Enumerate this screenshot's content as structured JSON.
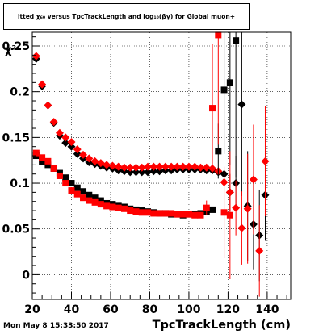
{
  "title": "itted  χ₆₀  versus TpcTrackLength and log₁₀(βγ) for Global muon+",
  "y_axis_symbol": "χ²",
  "footer_timestamp": "Mon May  8 15:33:50 2017",
  "chart_data": {
    "type": "scatter",
    "xlabel": "TpcTrackLength (cm)",
    "ylabel": "",
    "xlim": [
      20,
      152
    ],
    "ylim": [
      -0.027,
      0.265
    ],
    "x_ticks": [
      20,
      40,
      60,
      80,
      100,
      120,
      140
    ],
    "y_ticks": [
      0,
      0.05,
      0.1,
      0.15,
      0.2,
      0.25
    ],
    "y_tick_labels": [
      "0",
      "0.05",
      "0.1",
      "0.15",
      "0.2",
      "0.25"
    ],
    "grid": true,
    "series": [
      {
        "marker": "diamond",
        "color": "#000000",
        "points": [
          [
            22,
            0.236
          ],
          [
            25,
            0.206
          ],
          [
            28,
            0.185
          ],
          [
            31,
            0.166
          ],
          [
            34,
            0.152
          ],
          [
            37,
            0.144
          ],
          [
            40,
            0.14
          ],
          [
            43,
            0.132
          ],
          [
            46,
            0.127
          ],
          [
            49,
            0.123
          ],
          [
            52,
            0.121
          ],
          [
            55,
            0.119
          ],
          [
            58,
            0.117
          ],
          [
            61,
            0.116
          ],
          [
            64,
            0.114
          ],
          [
            67,
            0.113
          ],
          [
            70,
            0.112
          ],
          [
            73,
            0.112
          ],
          [
            76,
            0.112
          ],
          [
            79,
            0.112
          ],
          [
            82,
            0.113
          ],
          [
            85,
            0.113
          ],
          [
            88,
            0.114
          ],
          [
            91,
            0.114
          ],
          [
            94,
            0.115
          ],
          [
            97,
            0.115
          ],
          [
            100,
            0.115
          ],
          [
            103,
            0.115
          ],
          [
            106,
            0.115
          ],
          [
            109,
            0.114
          ],
          [
            112,
            0.114
          ],
          [
            115,
            0.112
          ],
          [
            118,
            0.11
          ],
          [
            121,
            0.09
          ],
          [
            124,
            0.1
          ],
          [
            127,
            0.186
          ],
          [
            130,
            0.075
          ],
          [
            133,
            0.055
          ],
          [
            136,
            0.043
          ],
          [
            139,
            0.087
          ]
        ],
        "errors": [
          0,
          0,
          0,
          0,
          0,
          0,
          0,
          0,
          0,
          0,
          0,
          0,
          0,
          0,
          0,
          0,
          0,
          0,
          0,
          0,
          0,
          0,
          0,
          0,
          0,
          0,
          0,
          0,
          0,
          0,
          0,
          0,
          0.004,
          0.02,
          0.03,
          0.1,
          0.06,
          0.05,
          0.05,
          0.05
        ]
      },
      {
        "marker": "diamond",
        "color": "#ff0000",
        "points": [
          [
            22,
            0.239
          ],
          [
            25,
            0.208
          ],
          [
            28,
            0.185
          ],
          [
            31,
            0.167
          ],
          [
            34,
            0.155
          ],
          [
            37,
            0.15
          ],
          [
            40,
            0.145
          ],
          [
            43,
            0.137
          ],
          [
            46,
            0.131
          ],
          [
            49,
            0.127
          ],
          [
            52,
            0.124
          ],
          [
            55,
            0.122
          ],
          [
            58,
            0.12
          ],
          [
            61,
            0.119
          ],
          [
            64,
            0.118
          ],
          [
            67,
            0.117
          ],
          [
            70,
            0.117
          ],
          [
            73,
            0.117
          ],
          [
            76,
            0.117
          ],
          [
            79,
            0.118
          ],
          [
            82,
            0.118
          ],
          [
            85,
            0.118
          ],
          [
            88,
            0.118
          ],
          [
            91,
            0.118
          ],
          [
            94,
            0.118
          ],
          [
            97,
            0.118
          ],
          [
            100,
            0.118
          ],
          [
            103,
            0.118
          ],
          [
            106,
            0.117
          ],
          [
            109,
            0.117
          ],
          [
            112,
            0.116
          ],
          [
            115,
            0.113
          ],
          [
            118,
            0.101
          ],
          [
            121,
            0.09
          ],
          [
            124,
            0.073
          ],
          [
            127,
            0.051
          ],
          [
            130,
            0.072
          ],
          [
            133,
            0.104
          ],
          [
            136,
            0.026
          ],
          [
            139,
            0.124
          ]
        ],
        "errors": [
          0,
          0,
          0,
          0,
          0,
          0,
          0,
          0,
          0,
          0,
          0,
          0,
          0,
          0,
          0,
          0,
          0,
          0,
          0,
          0,
          0,
          0,
          0,
          0,
          0,
          0,
          0,
          0,
          0,
          0,
          0,
          0,
          0.004,
          0.02,
          0.03,
          0.04,
          0.06,
          0.06,
          0.05,
          0.06
        ]
      },
      {
        "marker": "square",
        "color": "#000000",
        "points": [
          [
            22,
            0.13
          ],
          [
            25,
            0.123
          ],
          [
            28,
            0.12
          ],
          [
            31,
            0.116
          ],
          [
            34,
            0.111
          ],
          [
            37,
            0.106
          ],
          [
            40,
            0.1
          ],
          [
            43,
            0.095
          ],
          [
            46,
            0.091
          ],
          [
            49,
            0.087
          ],
          [
            52,
            0.084
          ],
          [
            55,
            0.081
          ],
          [
            58,
            0.078
          ],
          [
            61,
            0.077
          ],
          [
            64,
            0.075
          ],
          [
            67,
            0.074
          ],
          [
            70,
            0.072
          ],
          [
            73,
            0.071
          ],
          [
            76,
            0.07
          ],
          [
            79,
            0.069
          ],
          [
            82,
            0.068
          ],
          [
            85,
            0.067
          ],
          [
            88,
            0.067
          ],
          [
            91,
            0.066
          ],
          [
            94,
            0.066
          ],
          [
            97,
            0.065
          ],
          [
            100,
            0.066
          ],
          [
            103,
            0.066
          ],
          [
            106,
            0.067
          ],
          [
            109,
            0.069
          ],
          [
            112,
            0.071
          ],
          [
            115,
            0.135
          ],
          [
            118,
            0.202
          ],
          [
            121,
            0.21
          ],
          [
            124,
            0.256
          ]
        ],
        "errors": [
          0,
          0,
          0,
          0,
          0,
          0,
          0,
          0,
          0,
          0,
          0,
          0,
          0,
          0,
          0,
          0,
          0,
          0,
          0,
          0,
          0,
          0,
          0,
          0,
          0,
          0,
          0,
          0,
          0,
          0,
          0.003,
          0.03,
          0.07,
          0.09,
          0.15
        ]
      },
      {
        "marker": "square",
        "color": "#ff0000",
        "points": [
          [
            22,
            0.133
          ],
          [
            25,
            0.128
          ],
          [
            28,
            0.124
          ],
          [
            31,
            0.116
          ],
          [
            34,
            0.108
          ],
          [
            37,
            0.1
          ],
          [
            40,
            0.092
          ],
          [
            43,
            0.088
          ],
          [
            46,
            0.084
          ],
          [
            49,
            0.081
          ],
          [
            52,
            0.079
          ],
          [
            55,
            0.077
          ],
          [
            58,
            0.075
          ],
          [
            61,
            0.074
          ],
          [
            64,
            0.073
          ],
          [
            67,
            0.072
          ],
          [
            70,
            0.07
          ],
          [
            73,
            0.069
          ],
          [
            76,
            0.068
          ],
          [
            79,
            0.068
          ],
          [
            82,
            0.067
          ],
          [
            85,
            0.067
          ],
          [
            88,
            0.067
          ],
          [
            91,
            0.067
          ],
          [
            94,
            0.066
          ],
          [
            97,
            0.066
          ],
          [
            100,
            0.066
          ],
          [
            103,
            0.065
          ],
          [
            106,
            0.065
          ],
          [
            109,
            0.073
          ],
          [
            112,
            0.182
          ],
          [
            115,
            0.262
          ],
          [
            118,
            0.068
          ],
          [
            121,
            0.065
          ]
        ],
        "errors": [
          0,
          0,
          0,
          0,
          0,
          0,
          0,
          0,
          0,
          0,
          0,
          0,
          0,
          0,
          0,
          0,
          0,
          0,
          0,
          0,
          0,
          0,
          0,
          0,
          0,
          0,
          0,
          0,
          0,
          0.008,
          0.07,
          0.12,
          0.05,
          0.07
        ]
      }
    ]
  }
}
